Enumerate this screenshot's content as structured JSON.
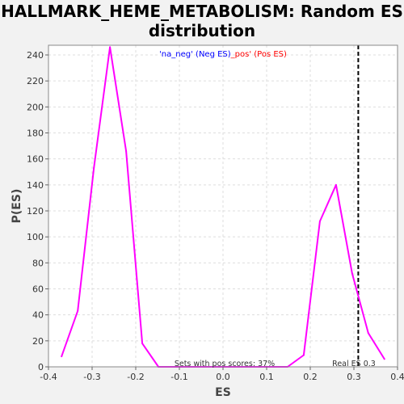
{
  "chart_data": {
    "type": "line",
    "title": "HALLMARK_HEME_METABOLISM: Random ES distribution",
    "xlabel": "ES",
    "ylabel": "P(ES)",
    "xlim": [
      -0.4,
      0.4
    ],
    "ylim": [
      0,
      250
    ],
    "x_ticks": [
      -0.4,
      -0.3,
      -0.2,
      -0.1,
      0.0,
      0.1,
      0.2,
      0.3,
      0.4
    ],
    "x_tick_labels": [
      "-0.4",
      "-0.3",
      "-0.2",
      "-0.1",
      "0.0",
      "0.1",
      "0.2",
      "0.3",
      "0.4"
    ],
    "y_ticks": [
      0,
      20,
      40,
      60,
      80,
      100,
      120,
      140,
      160,
      180,
      200,
      220,
      240
    ],
    "grid": true,
    "legend": {
      "placement": "top-center",
      "parts": [
        {
          "text": "'na_neg' (Neg ES)",
          "color": "#0000ff"
        },
        {
          "text": "_pos' (Pos ES)",
          "color": "#ff0000"
        }
      ]
    },
    "series": [
      {
        "color": "#ff00ff",
        "x": [
          -0.37,
          -0.333,
          -0.296,
          -0.259,
          -0.222,
          -0.185,
          -0.148,
          -0.111,
          0.111,
          0.148,
          0.185,
          0.222,
          0.259,
          0.296,
          0.333,
          0.37
        ],
        "y": [
          8,
          43,
          153,
          246,
          166,
          18,
          0,
          0,
          0,
          0,
          9,
          112,
          140,
          72,
          26,
          6
        ]
      }
    ],
    "reference_line": {
      "x": 0.31,
      "style": "dashed",
      "color": "#000000",
      "label": "Real ES 0.3"
    },
    "annotation": "Sets with pos scores: 37%"
  }
}
